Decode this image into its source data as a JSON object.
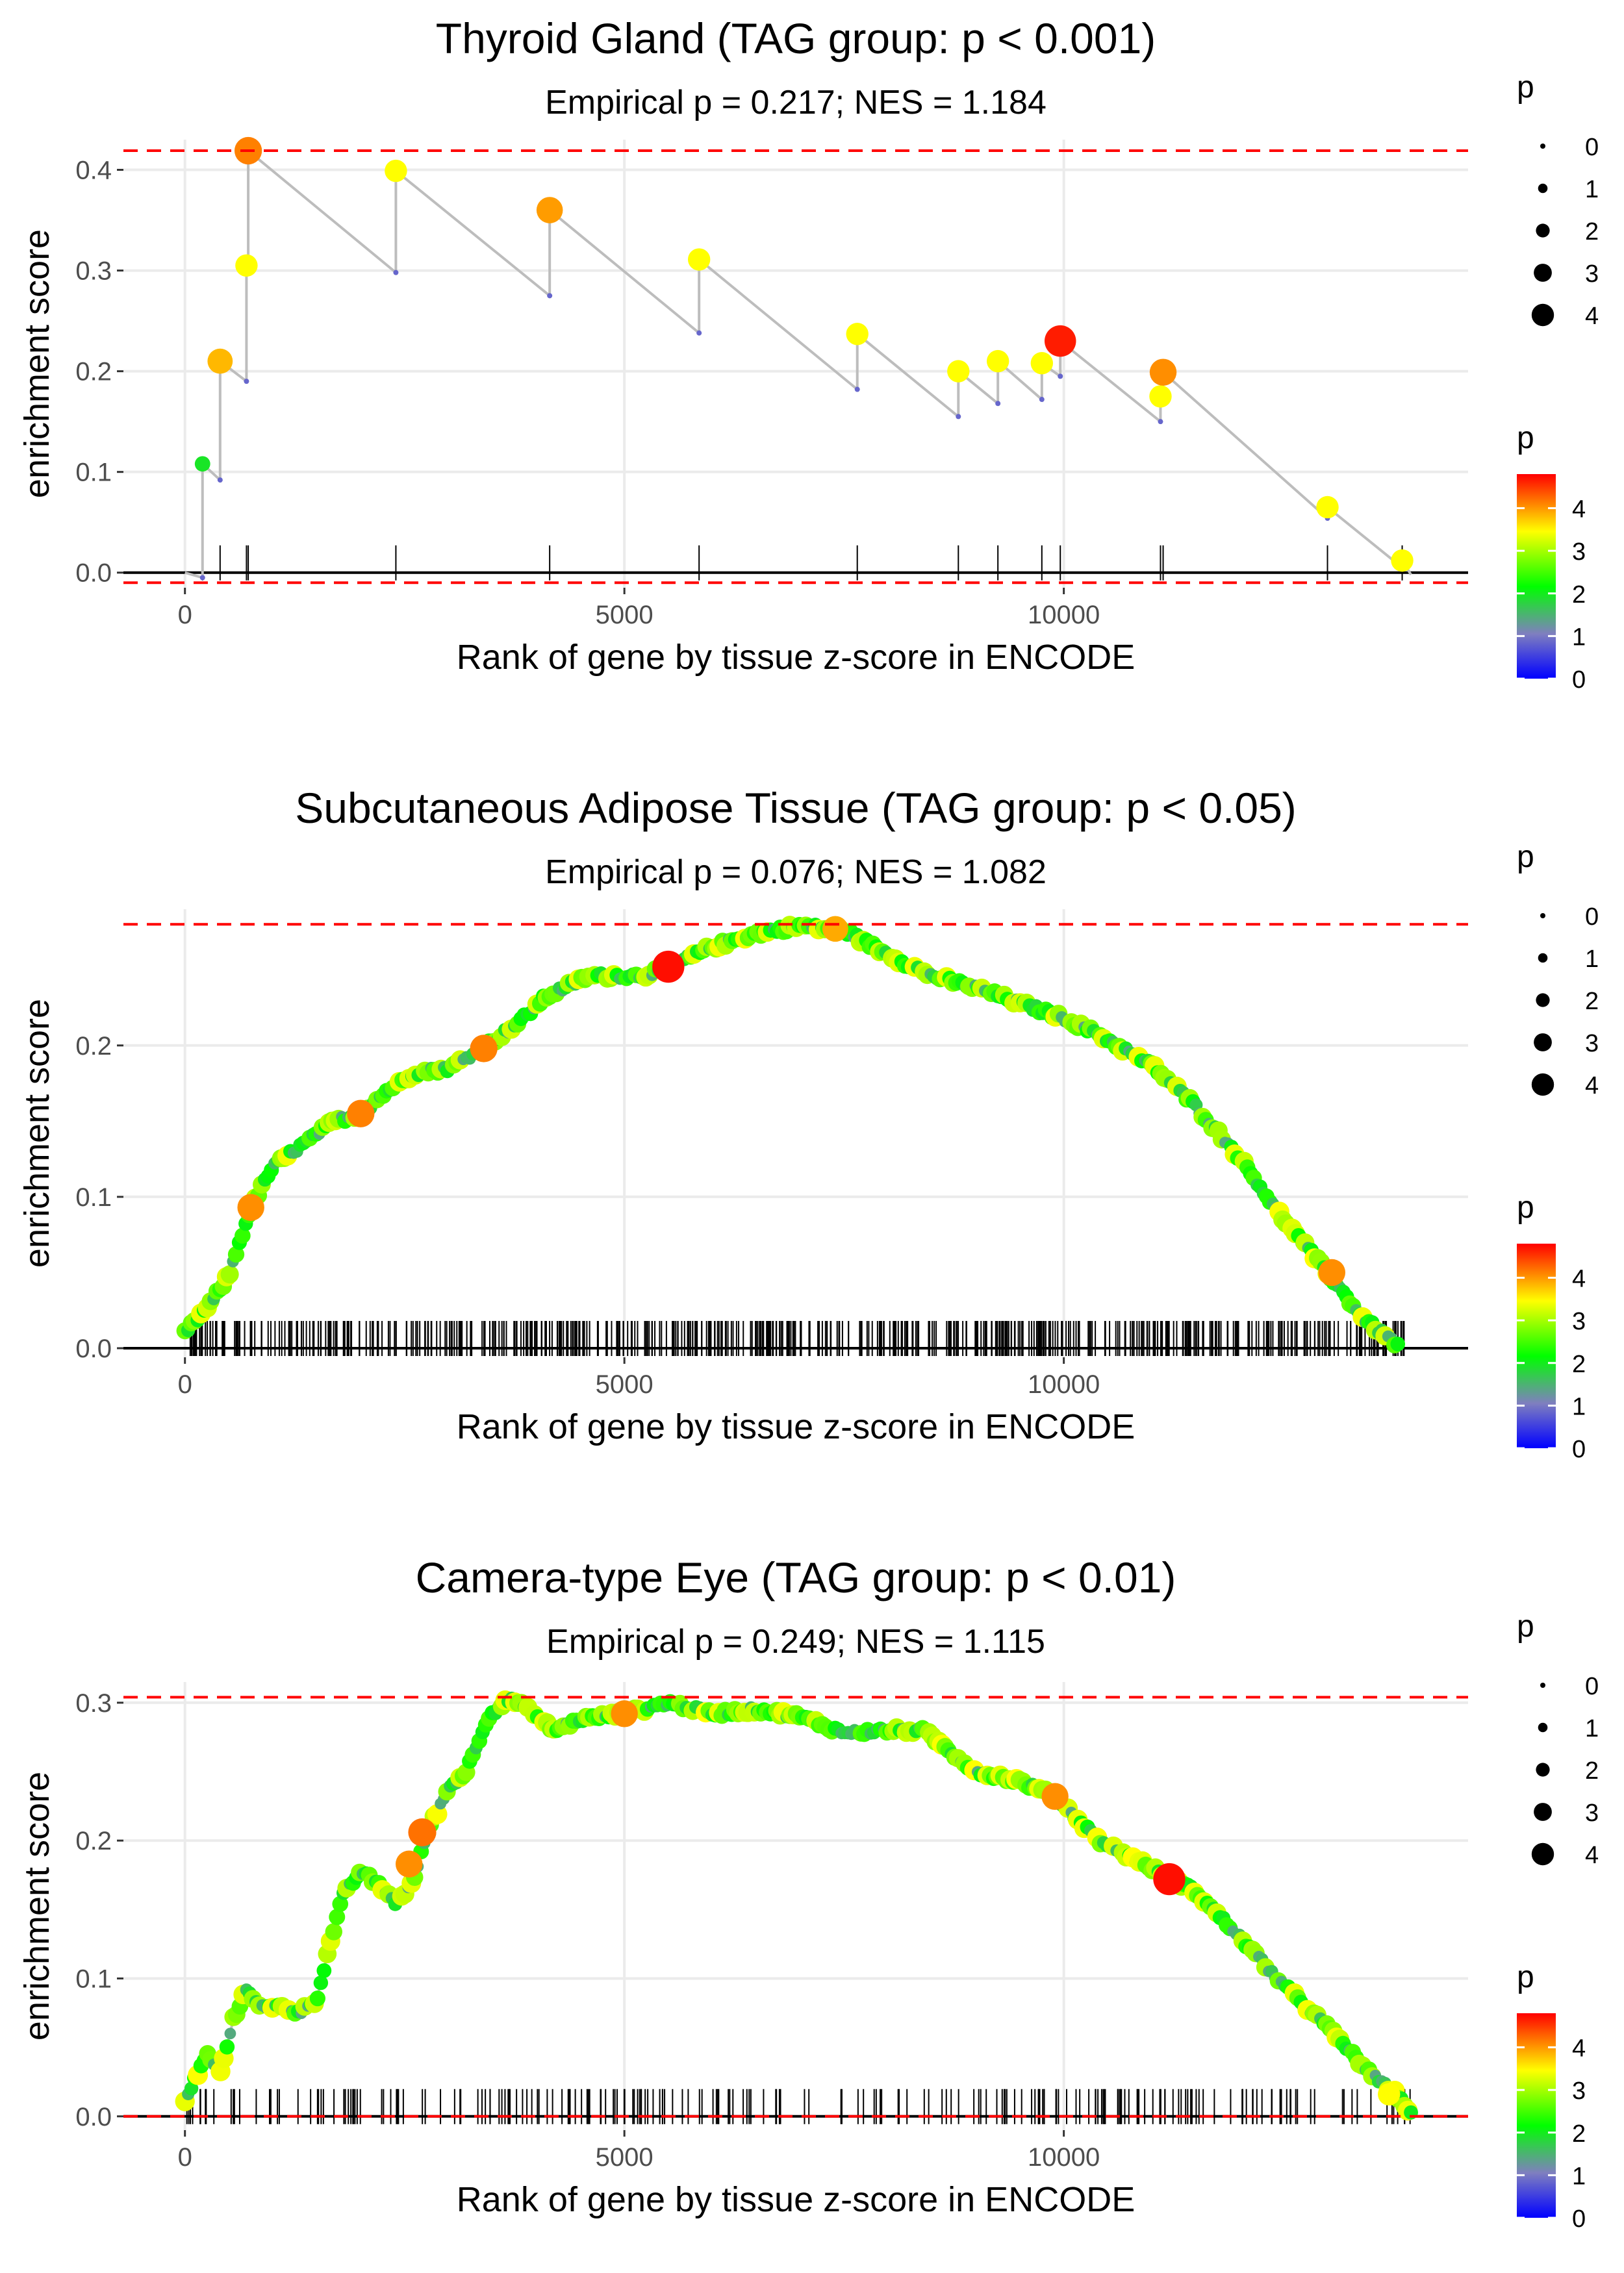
{
  "figure": {
    "xlabel": "Rank of gene by tissue z-score in ENCODE",
    "ylabel": "enrichment score",
    "x_ticks": [
      0,
      5000,
      10000
    ],
    "x_tick_labels": [
      "0",
      "5000",
      "10000"
    ],
    "size_legend": {
      "title": "p",
      "labels": [
        "0",
        "1",
        "2",
        "3",
        "4"
      ],
      "values": [
        0,
        1,
        2,
        3,
        4
      ]
    },
    "color_legend": {
      "title": "p",
      "labels": [
        "4",
        "3",
        "2",
        "1",
        "0"
      ],
      "values": [
        4,
        3,
        2,
        1,
        0
      ]
    },
    "colors": {
      "reference_line": "#ff0000",
      "es_line": "#bdbdbd",
      "grid": "#ebebeb",
      "zero_line": "#000000"
    },
    "color_scale": [
      "#0000ff",
      "#7f7fbf",
      "#00ff00",
      "#ffff00",
      "#ff0000"
    ]
  },
  "chart_data": [
    {
      "type": "scatter",
      "title": "Thyroid Gland (TAG group: p < 0.001)",
      "subtitle": "Empirical p = 0.217; NES = 1.184",
      "xlabel": "Rank of gene by tissue z-score in ENCODE",
      "ylabel": "enrichment score",
      "xlim": [
        -700,
        14600
      ],
      "ylim": [
        -0.015,
        0.43
      ],
      "y_ticks": [
        0.0,
        0.1,
        0.2,
        0.3,
        0.4
      ],
      "y_tick_labels": [
        "0.0",
        "0.1",
        "0.2",
        "0.3",
        "0.4"
      ],
      "ref_lines": [
        0.419,
        -0.01
      ],
      "mode": "sparse",
      "hits": [
        {
          "x": 200,
          "pre": -0.005,
          "es": 0.108,
          "p": 1.8
        },
        {
          "x": 400,
          "pre": 0.092,
          "es": 0.21,
          "p": 3.5
        },
        {
          "x": 700,
          "pre": 0.19,
          "es": 0.305,
          "p": 3.0
        },
        {
          "x": 720,
          "pre": 0.3,
          "es": 0.419,
          "p": 3.9
        },
        {
          "x": 2400,
          "pre": 0.298,
          "es": 0.399,
          "p": 3.0
        },
        {
          "x": 4150,
          "pre": 0.275,
          "es": 0.36,
          "p": 3.7
        },
        {
          "x": 5850,
          "pre": 0.238,
          "es": 0.311,
          "p": 3.0
        },
        {
          "x": 7650,
          "pre": 0.182,
          "es": 0.237,
          "p": 3.0
        },
        {
          "x": 8800,
          "pre": 0.155,
          "es": 0.2,
          "p": 3.0
        },
        {
          "x": 9250,
          "pre": 0.168,
          "es": 0.21,
          "p": 3.0
        },
        {
          "x": 9750,
          "pre": 0.172,
          "es": 0.208,
          "p": 3.0
        },
        {
          "x": 9960,
          "pre": 0.195,
          "es": 0.23,
          "p": 4.6
        },
        {
          "x": 11100,
          "pre": 0.15,
          "es": 0.175,
          "p": 3.0
        },
        {
          "x": 11130,
          "pre": 0.174,
          "es": 0.199,
          "p": 3.8
        },
        {
          "x": 13000,
          "pre": 0.054,
          "es": 0.065,
          "p": 3.0
        },
        {
          "x": 13850,
          "pre": 0.005,
          "es": 0.012,
          "p": 3.0
        }
      ],
      "end": {
        "x": 13950,
        "y": -0.002
      }
    },
    {
      "type": "scatter",
      "title": "Subcutaneous Adipose Tissue (TAG group: p < 0.05)",
      "subtitle": "Empirical p = 0.076; NES = 1.082",
      "xlabel": "Rank of gene by tissue z-score in ENCODE",
      "ylabel": "enrichment score",
      "xlim": [
        -700,
        14600
      ],
      "ylim": [
        -0.006,
        0.29
      ],
      "y_ticks": [
        0.0,
        0.1,
        0.2
      ],
      "y_tick_labels": [
        "0.0",
        "0.1",
        "0.2"
      ],
      "ref_lines": [
        0.28
      ],
      "mode": "dense",
      "curve": [
        {
          "x": 0,
          "y": 0.01
        },
        {
          "x": 150,
          "y": 0.02
        },
        {
          "x": 300,
          "y": 0.03
        },
        {
          "x": 500,
          "y": 0.048
        },
        {
          "x": 750,
          "y": 0.093
        },
        {
          "x": 1000,
          "y": 0.12
        },
        {
          "x": 1400,
          "y": 0.137
        },
        {
          "x": 1700,
          "y": 0.15
        },
        {
          "x": 2000,
          "y": 0.155
        },
        {
          "x": 2300,
          "y": 0.17
        },
        {
          "x": 2600,
          "y": 0.182
        },
        {
          "x": 3000,
          "y": 0.185
        },
        {
          "x": 3350,
          "y": 0.197
        },
        {
          "x": 3800,
          "y": 0.215
        },
        {
          "x": 4100,
          "y": 0.232
        },
        {
          "x": 4600,
          "y": 0.246
        },
        {
          "x": 5200,
          "y": 0.246
        },
        {
          "x": 5500,
          "y": 0.252
        },
        {
          "x": 6000,
          "y": 0.265
        },
        {
          "x": 6500,
          "y": 0.274
        },
        {
          "x": 7000,
          "y": 0.279
        },
        {
          "x": 7500,
          "y": 0.276
        },
        {
          "x": 8000,
          "y": 0.26
        },
        {
          "x": 8500,
          "y": 0.246
        },
        {
          "x": 9000,
          "y": 0.238
        },
        {
          "x": 9500,
          "y": 0.228
        },
        {
          "x": 10000,
          "y": 0.218
        },
        {
          "x": 10400,
          "y": 0.207
        },
        {
          "x": 11000,
          "y": 0.187
        },
        {
          "x": 11500,
          "y": 0.16
        },
        {
          "x": 12000,
          "y": 0.126
        },
        {
          "x": 12500,
          "y": 0.085
        },
        {
          "x": 13000,
          "y": 0.05
        },
        {
          "x": 13400,
          "y": 0.02
        },
        {
          "x": 13800,
          "y": 0.002
        }
      ],
      "rug": {
        "start": 0,
        "end": 13900,
        "count": 600
      },
      "highlights": [
        {
          "x": 750,
          "y": 0.093,
          "p": 3.8
        },
        {
          "x": 2000,
          "y": 0.155,
          "p": 3.9
        },
        {
          "x": 3400,
          "y": 0.198,
          "p": 3.9
        },
        {
          "x": 5500,
          "y": 0.252,
          "p": 4.7
        },
        {
          "x": 7400,
          "y": 0.277,
          "p": 3.6
        },
        {
          "x": 13050,
          "y": 0.05,
          "p": 3.8
        }
      ]
    },
    {
      "type": "scatter",
      "title": "Camera-type Eye (TAG group: p < 0.01)",
      "subtitle": "Empirical p = 0.249; NES = 1.115",
      "xlabel": "Rank of gene by tissue z-score in ENCODE",
      "ylabel": "enrichment score",
      "xlim": [
        -700,
        14600
      ],
      "ylim": [
        -0.01,
        0.315
      ],
      "y_ticks": [
        0.0,
        0.1,
        0.2,
        0.3
      ],
      "y_tick_labels": [
        "0.0",
        "0.1",
        "0.2",
        "0.3"
      ],
      "ref_lines": [
        0.304,
        0.0
      ],
      "mode": "dense",
      "curve": [
        {
          "x": 0,
          "y": 0.01
        },
        {
          "x": 100,
          "y": 0.025
        },
        {
          "x": 250,
          "y": 0.045
        },
        {
          "x": 400,
          "y": 0.03
        },
        {
          "x": 550,
          "y": 0.07
        },
        {
          "x": 700,
          "y": 0.092
        },
        {
          "x": 900,
          "y": 0.078
        },
        {
          "x": 1100,
          "y": 0.08
        },
        {
          "x": 1300,
          "y": 0.075
        },
        {
          "x": 1500,
          "y": 0.085
        },
        {
          "x": 1650,
          "y": 0.125
        },
        {
          "x": 1800,
          "y": 0.16
        },
        {
          "x": 2000,
          "y": 0.178
        },
        {
          "x": 2200,
          "y": 0.168
        },
        {
          "x": 2400,
          "y": 0.155
        },
        {
          "x": 2600,
          "y": 0.17
        },
        {
          "x": 2750,
          "y": 0.205
        },
        {
          "x": 3000,
          "y": 0.238
        },
        {
          "x": 3200,
          "y": 0.25
        },
        {
          "x": 3450,
          "y": 0.29
        },
        {
          "x": 3700,
          "y": 0.303
        },
        {
          "x": 3900,
          "y": 0.295
        },
        {
          "x": 4200,
          "y": 0.28
        },
        {
          "x": 4500,
          "y": 0.288
        },
        {
          "x": 5000,
          "y": 0.292
        },
        {
          "x": 5500,
          "y": 0.3
        },
        {
          "x": 6000,
          "y": 0.292
        },
        {
          "x": 6500,
          "y": 0.295
        },
        {
          "x": 7000,
          "y": 0.29
        },
        {
          "x": 7500,
          "y": 0.278
        },
        {
          "x": 8000,
          "y": 0.28
        },
        {
          "x": 8400,
          "y": 0.28
        },
        {
          "x": 9000,
          "y": 0.25
        },
        {
          "x": 9500,
          "y": 0.243
        },
        {
          "x": 9900,
          "y": 0.232
        },
        {
          "x": 10400,
          "y": 0.2
        },
        {
          "x": 11000,
          "y": 0.18
        },
        {
          "x": 11500,
          "y": 0.163
        },
        {
          "x": 12000,
          "y": 0.13
        },
        {
          "x": 12500,
          "y": 0.095
        },
        {
          "x": 13000,
          "y": 0.065
        },
        {
          "x": 13500,
          "y": 0.03
        },
        {
          "x": 13800,
          "y": 0.015
        },
        {
          "x": 13950,
          "y": 0.002
        }
      ],
      "rug": {
        "start": 0,
        "end": 13950,
        "count": 230
      },
      "highlights": [
        {
          "x": 2550,
          "y": 0.183,
          "p": 3.8
        },
        {
          "x": 2700,
          "y": 0.206,
          "p": 4.0
        },
        {
          "x": 5000,
          "y": 0.292,
          "p": 3.8
        },
        {
          "x": 9900,
          "y": 0.232,
          "p": 3.8
        },
        {
          "x": 11200,
          "y": 0.172,
          "p": 4.7
        },
        {
          "x": 13700,
          "y": 0.016,
          "p": 3.0
        }
      ]
    }
  ]
}
